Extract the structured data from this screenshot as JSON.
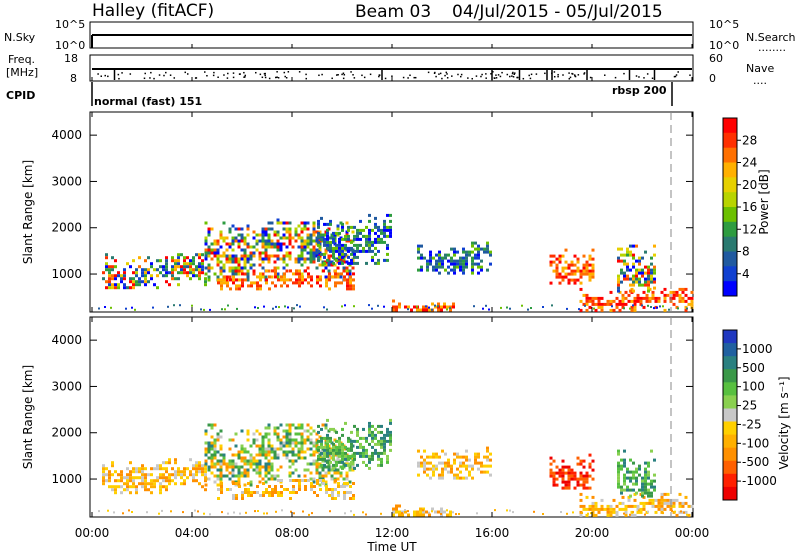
{
  "header": {
    "station": "Halley (fitACF)",
    "beam": "Beam 03",
    "date_range": "04/Jul/2015 - 05/Jul/2015"
  },
  "top_panels": {
    "nsky": {
      "left_label": "N.Sky",
      "left_ticks": [
        "10^5",
        "10^0"
      ],
      "right_ticks": [
        "10^5",
        "10^0"
      ],
      "right_label": "N.Search",
      "right_sub": "........"
    },
    "freq": {
      "left_label_1": "Freq.",
      "left_label_2": "[MHz]",
      "left_ticks": [
        "18",
        "8"
      ],
      "right_ticks": [
        "60",
        "0"
      ],
      "right_label": "Nave",
      "right_sub": "...."
    },
    "cpid": {
      "label": "CPID",
      "mode_1": "normal (fast) 151",
      "mode_2": "rbsp 200"
    }
  },
  "x_axis": {
    "label": "Time UT",
    "ticks": [
      "00:00",
      "04:00",
      "08:00",
      "12:00",
      "16:00",
      "20:00",
      "00:00"
    ]
  },
  "chart_data": [
    {
      "type": "heatmap",
      "name": "power",
      "ylabel": "Slant Range [km]",
      "yticks": [
        "4000",
        "3000",
        "2000",
        "1000"
      ],
      "ylim": [
        180,
        4500
      ],
      "xlim_hours": [
        0,
        24
      ],
      "colorbar": {
        "label": "Power [dB]",
        "ticks": [
          "28",
          "24",
          "20",
          "16",
          "12",
          "8",
          "4"
        ],
        "colors": [
          "#ff0000",
          "#ff3000",
          "#ff7000",
          "#ffb000",
          "#e6d000",
          "#b8d400",
          "#6cc000",
          "#2e9c40",
          "#2a7a70",
          "#205aa0",
          "#1040d0",
          "#0000ff"
        ]
      },
      "bands": [
        {
          "t0": 0.4,
          "t1": 4.5,
          "r0": 700,
          "r1": 1450,
          "tone": "mix"
        },
        {
          "t0": 4.5,
          "t1": 10.5,
          "r0": 900,
          "r1": 2200,
          "tone": "mix"
        },
        {
          "t0": 5.0,
          "t1": 10.5,
          "r0": 650,
          "r1": 1100,
          "tone": "high"
        },
        {
          "t0": 9.0,
          "t1": 12.0,
          "r0": 1200,
          "r1": 2300,
          "tone": "low"
        },
        {
          "t0": 12.0,
          "t1": 14.5,
          "r0": 200,
          "r1": 450,
          "tone": "high"
        },
        {
          "t0": 13.0,
          "t1": 16.0,
          "r0": 1050,
          "r1": 1700,
          "tone": "low"
        },
        {
          "t0": 18.3,
          "t1": 20.0,
          "r0": 800,
          "r1": 1550,
          "tone": "high"
        },
        {
          "t0": 19.5,
          "t1": 24.0,
          "r0": 200,
          "r1": 700,
          "tone": "high"
        },
        {
          "t0": 21.0,
          "t1": 22.5,
          "r0": 600,
          "r1": 1700,
          "tone": "mix"
        }
      ]
    },
    {
      "type": "heatmap",
      "name": "velocity",
      "ylabel": "Slant Range [km]",
      "yticks": [
        "4000",
        "3000",
        "2000",
        "1000"
      ],
      "ylim": [
        180,
        4500
      ],
      "xlim_hours": [
        0,
        24
      ],
      "colorbar": {
        "label": "Velocity [m s⁻¹]",
        "ticks": [
          "1000",
          "500",
          "100",
          "25",
          "-25",
          "-100",
          "-500",
          "-1000"
        ],
        "colors": [
          "#2038c0",
          "#2060a0",
          "#2a8080",
          "#3a9848",
          "#58c040",
          "#8ad050",
          "#c8c8c8",
          "#ffd000",
          "#ffb000",
          "#ff9000",
          "#ff6000",
          "#ff2000",
          "#ee0000"
        ]
      },
      "bands": [
        {
          "t0": 0.4,
          "t1": 4.5,
          "r0": 700,
          "r1": 1450,
          "tone": "neg"
        },
        {
          "t0": 4.5,
          "t1": 10.5,
          "r0": 900,
          "r1": 2200,
          "tone": "mixv"
        },
        {
          "t0": 5.0,
          "t1": 10.5,
          "r0": 600,
          "r1": 1000,
          "tone": "neg"
        },
        {
          "t0": 9.0,
          "t1": 12.0,
          "r0": 1200,
          "r1": 2300,
          "tone": "pos"
        },
        {
          "t0": 12.0,
          "t1": 14.5,
          "r0": 200,
          "r1": 450,
          "tone": "neg"
        },
        {
          "t0": 13.0,
          "t1": 16.0,
          "r0": 1050,
          "r1": 1700,
          "tone": "neg"
        },
        {
          "t0": 18.3,
          "t1": 20.0,
          "r0": 800,
          "r1": 1550,
          "tone": "strongneg"
        },
        {
          "t0": 19.5,
          "t1": 24.0,
          "r0": 200,
          "r1": 700,
          "tone": "neg"
        },
        {
          "t0": 21.0,
          "t1": 22.5,
          "r0": 600,
          "r1": 1700,
          "tone": "pos"
        }
      ]
    }
  ]
}
